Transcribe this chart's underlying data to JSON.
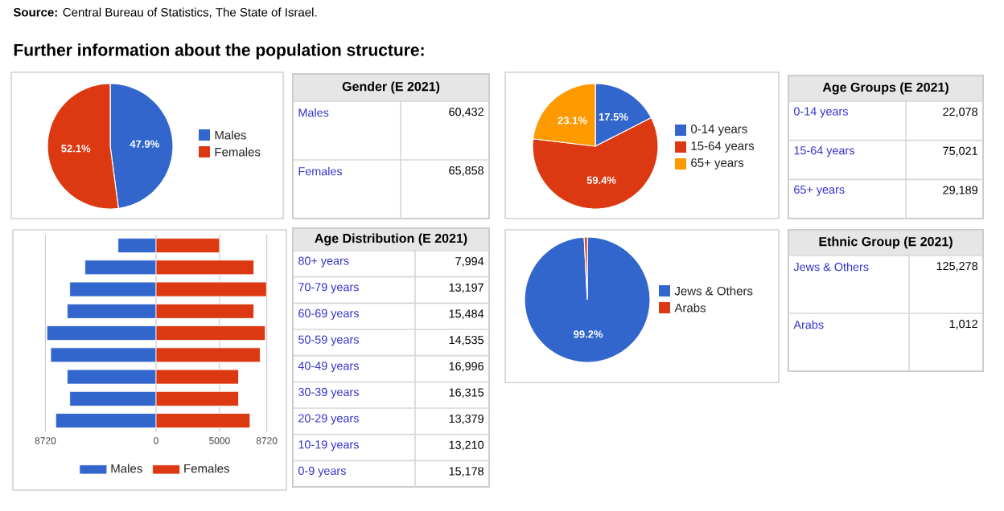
{
  "chart_data": [
    {
      "type": "other",
      "title": "Further information about the population structure:",
      "annotations": [
        "**Source:** Central Bureau of Statistics, The State of Israel."
      ]
    },
    {
      "type": "pie",
      "categories": [
        "Males",
        "Females"
      ],
      "values": [
        47.9,
        52.1
      ],
      "colors": [
        "#3366cc",
        "#dc3912"
      ],
      "value_labels": [
        "47.9%",
        "52.1%"
      ],
      "legend": "right"
    },
    {
      "type": "other",
      "title": "Gender (E 2021)",
      "categories": [
        "Males",
        "Females"
      ],
      "values": [
        60432,
        65858
      ],
      "value_labels": [
        "60,432",
        "65,858"
      ]
    },
    {
      "type": "pie",
      "categories": [
        "0-14 years",
        "15-64 years",
        "65+ years"
      ],
      "values": [
        17.5,
        59.4,
        23.1
      ],
      "colors": [
        "#3366cc",
        "#dc3912",
        "#ff9900"
      ],
      "value_labels": [
        "17.5%",
        "59.4%",
        "23.1%"
      ],
      "legend": "right"
    },
    {
      "type": "other",
      "title": "Age Groups (E 2021)",
      "categories": [
        "0-14 years",
        "15-64 years",
        "65+ years"
      ],
      "values": [
        22078,
        75021,
        29189
      ],
      "value_labels": [
        "22,078",
        "75,021",
        "29,189"
      ]
    },
    {
      "type": "bar",
      "orientation": "horizontal",
      "categories": [
        null,
        null,
        null,
        null,
        null,
        null,
        null,
        null,
        null
      ],
      "series": [
        {
          "name": "Males",
          "color": "#3366cc",
          "values": [
            -3000,
            -5600,
            -6800,
            -7000,
            -8600,
            -8300,
            -7000,
            -6800,
            -7900
          ]
        },
        {
          "name": "Females",
          "color": "#dc3912",
          "values": [
            5000,
            7700,
            8700,
            7700,
            8600,
            8200,
            6500,
            6500,
            7400
          ]
        }
      ],
      "stacked": true,
      "xlim": [
        -8720,
        8720
      ],
      "xticks": [
        {
          "value": -8720,
          "label": "8720"
        },
        0,
        5000,
        8720
      ],
      "grid": "x",
      "legend": "bottom"
    },
    {
      "type": "other",
      "title": "Age Distribution (E 2021)",
      "categories": [
        "80+ years",
        "70-79 years",
        "60-69 years",
        "50-59 years",
        "40-49 years",
        "30-39 years",
        "20-29 years",
        "10-19 years",
        "0-9 years"
      ],
      "values": [
        7994,
        13197,
        15484,
        14535,
        16996,
        16315,
        13379,
        13210,
        15178
      ],
      "value_labels": [
        "7,994",
        "13,197",
        "15,484",
        "14,535",
        "16,996",
        "16,315",
        "13,379",
        "13,210",
        "15,178"
      ]
    },
    {
      "type": "pie",
      "categories": [
        "Jews & Others",
        "Arabs"
      ],
      "values": [
        99.2,
        0.8
      ],
      "colors": [
        "#3366cc",
        "#dc3912"
      ],
      "value_labels": [
        "99.2%",
        null
      ],
      "legend": "right"
    },
    {
      "type": "other",
      "title": "Ethnic Group (E 2021)",
      "categories": [
        "Jews & Others",
        "Arabs"
      ],
      "values": [
        125278,
        1012
      ],
      "value_labels": [
        "125,278",
        "1,012"
      ]
    }
  ]
}
